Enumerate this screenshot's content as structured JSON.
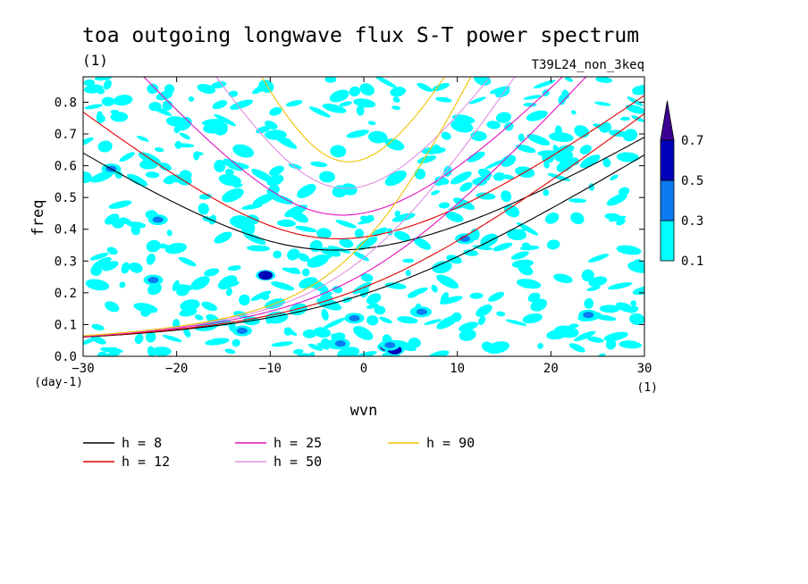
{
  "chart_data": {
    "type": "heatmap",
    "title": "toa outgoing longwave flux S-T power spectrum",
    "title_units": "(1)",
    "subtitle": "T39L24_non_3keq",
    "xlabel": "wvn",
    "x_units": "(1)",
    "ylabel": "freq",
    "y_units": "(day-1)",
    "xlim": [
      -30,
      30
    ],
    "ylim": [
      0.0,
      0.88
    ],
    "x_ticks": [
      -30,
      -20,
      -10,
      0,
      10,
      20,
      30
    ],
    "x_tick_labels": [
      "−30",
      "−20",
      "−10",
      "0",
      "10",
      "20",
      "30"
    ],
    "y_ticks": [
      0.0,
      0.1,
      0.2,
      0.3,
      0.4,
      0.5,
      0.6,
      0.7,
      0.8
    ],
    "y_tick_labels": [
      "0.0",
      "0.1",
      "0.2",
      "0.3",
      "0.4",
      "0.5",
      "0.6",
      "0.7",
      "0.8"
    ],
    "grid": false,
    "colorbar": {
      "levels": [
        0.1,
        0.3,
        0.5,
        0.7
      ],
      "level_labels": [
        "0.1",
        "0.3",
        "0.5",
        "0.7"
      ],
      "colors": [
        "#00ffff",
        "#0c7af0",
        "#0000b8",
        "#3c0092"
      ],
      "extend": "max"
    },
    "power_blobs": [
      {
        "x": 2.5,
        "y": 0.03,
        "value": 0.7
      },
      {
        "x": 3.3,
        "y": 0.02,
        "value": 0.5
      },
      {
        "x": 6.0,
        "y": 0.14,
        "value": 0.5
      },
      {
        "x": -10.5,
        "y": 0.255,
        "value": 0.5
      },
      {
        "x": -22.5,
        "y": 0.24,
        "value": 0.3
      },
      {
        "x": -22.0,
        "y": 0.43,
        "value": 0.3
      },
      {
        "x": 10.8,
        "y": 0.37,
        "value": 0.3
      },
      {
        "x": 6.2,
        "y": 0.14,
        "value": 0.3
      },
      {
        "x": -13.0,
        "y": 0.08,
        "value": 0.3
      },
      {
        "x": 2.8,
        "y": 0.035,
        "value": 0.3
      },
      {
        "x": 24.0,
        "y": 0.13,
        "value": 0.3
      },
      {
        "x": -1.0,
        "y": 0.12,
        "value": 0.3
      },
      {
        "x": -27.0,
        "y": 0.59,
        "value": 0.3
      },
      {
        "x": -2.5,
        "y": 0.04,
        "value": 0.3
      }
    ],
    "series": [
      {
        "name": "h = 8",
        "h": 8,
        "color": "#000000"
      },
      {
        "name": "h = 12",
        "h": 12,
        "color": "#e00000"
      },
      {
        "name": "h = 25",
        "h": 25,
        "color": "#e010c0"
      },
      {
        "name": "h = 50",
        "h": 50,
        "color": "#e090e0"
      },
      {
        "name": "h = 90",
        "h": 90,
        "color": "#f0c000"
      }
    ]
  }
}
